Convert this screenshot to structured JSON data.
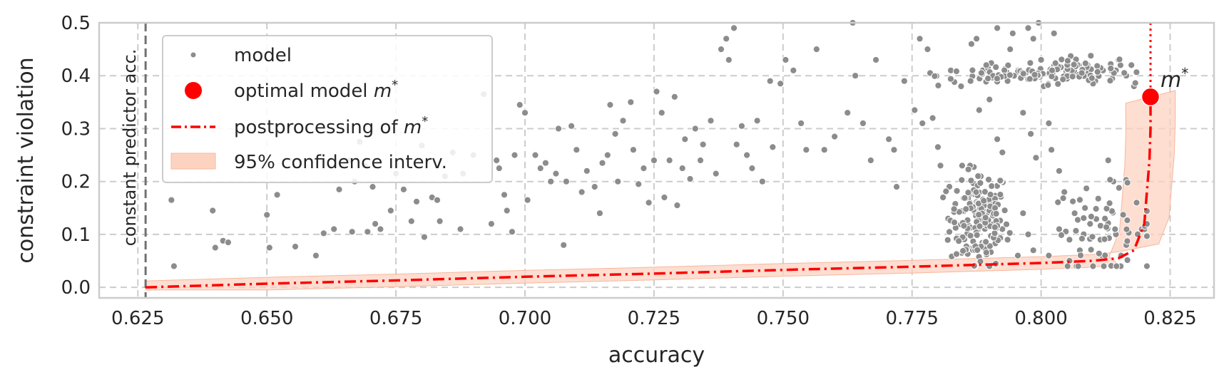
{
  "chart_data": {
    "type": "scatter",
    "xlabel": "accuracy",
    "ylabel": "constraint violation",
    "xlim": [
      0.6175,
      0.8335
    ],
    "ylim": [
      -0.02,
      0.5
    ],
    "xticks": [
      "0.625",
      "0.650",
      "0.675",
      "0.700",
      "0.725",
      "0.750",
      "0.775",
      "0.800",
      "0.825"
    ],
    "yticks": [
      "0.0",
      "0.1",
      "0.2",
      "0.3",
      "0.4",
      "0.5"
    ],
    "grid": true,
    "legend_position": "top-left",
    "legend": {
      "model": "model",
      "optimal_prefix": "optimal model ",
      "postprocessing_prefix": "postprocessing of ",
      "ci": "95% confidence interv.",
      "m_star_symbol": "m",
      "m_star_sup": "*"
    },
    "baseline": {
      "x": 0.6265,
      "label": "constant predictor acc."
    },
    "optimal_model": {
      "x": 0.8212,
      "y": 0.36,
      "label_symbol": "m",
      "label_sup": "*"
    },
    "postprocessing_curve": [
      [
        0.6265,
        0.0
      ],
      [
        0.65,
        0.007
      ],
      [
        0.675,
        0.013
      ],
      [
        0.7,
        0.02
      ],
      [
        0.725,
        0.026
      ],
      [
        0.75,
        0.033
      ],
      [
        0.775,
        0.039
      ],
      [
        0.8,
        0.046
      ],
      [
        0.81,
        0.05
      ],
      [
        0.815,
        0.055
      ],
      [
        0.818,
        0.07
      ],
      [
        0.82,
        0.12
      ],
      [
        0.8205,
        0.18
      ],
      [
        0.821,
        0.24
      ],
      [
        0.8212,
        0.3
      ],
      [
        0.8212,
        0.36
      ]
    ],
    "ci_halfwidth": 0.012,
    "colors": {
      "model": "#8c8c8c",
      "optimal": "#ff0000",
      "curve": "#ff0000",
      "ci_fill": "#fcd3c1",
      "baseline": "#707070"
    },
    "model_points_manual": [
      [
        0.6315,
        0.165
      ],
      [
        0.632,
        0.04
      ],
      [
        0.6395,
        0.145
      ],
      [
        0.64,
        0.075
      ],
      [
        0.6415,
        0.088
      ],
      [
        0.6425,
        0.085
      ],
      [
        0.65,
        0.137
      ],
      [
        0.6505,
        0.075
      ],
      [
        0.652,
        0.175
      ],
      [
        0.6555,
        0.077
      ],
      [
        0.6595,
        0.06
      ],
      [
        0.661,
        0.102
      ],
      [
        0.663,
        0.11
      ],
      [
        0.664,
        0.185
      ],
      [
        0.666,
        0.24
      ],
      [
        0.6665,
        0.105
      ],
      [
        0.667,
        0.2
      ],
      [
        0.668,
        0.275
      ],
      [
        0.669,
        0.23
      ],
      [
        0.6695,
        0.105
      ],
      [
        0.6705,
        0.19
      ],
      [
        0.671,
        0.12
      ],
      [
        0.672,
        0.11
      ],
      [
        0.674,
        0.145
      ],
      [
        0.675,
        0.215
      ],
      [
        0.6765,
        0.185
      ],
      [
        0.678,
        0.125
      ],
      [
        0.679,
        0.162
      ],
      [
        0.68,
        0.268
      ],
      [
        0.6805,
        0.095
      ],
      [
        0.682,
        0.17
      ],
      [
        0.683,
        0.165
      ],
      [
        0.6835,
        0.125
      ],
      [
        0.6845,
        0.21
      ],
      [
        0.686,
        0.255
      ],
      [
        0.6875,
        0.11
      ],
      [
        0.688,
        0.215
      ],
      [
        0.69,
        0.25
      ],
      [
        0.692,
        0.365
      ],
      [
        0.6935,
        0.12
      ],
      [
        0.6945,
        0.24
      ],
      [
        0.695,
        0.225
      ],
      [
        0.696,
        0.175
      ],
      [
        0.6965,
        0.145
      ],
      [
        0.6975,
        0.105
      ],
      [
        0.698,
        0.25
      ],
      [
        0.699,
        0.345
      ],
      [
        0.7,
        0.33
      ],
      [
        0.7005,
        0.165
      ],
      [
        0.702,
        0.25
      ],
      [
        0.703,
        0.225
      ],
      [
        0.704,
        0.235
      ],
      [
        0.705,
        0.2
      ],
      [
        0.706,
        0.215
      ],
      [
        0.7065,
        0.3
      ],
      [
        0.7075,
        0.08
      ],
      [
        0.708,
        0.2
      ],
      [
        0.709,
        0.305
      ],
      [
        0.71,
        0.26
      ],
      [
        0.711,
        0.18
      ],
      [
        0.712,
        0.22
      ],
      [
        0.7135,
        0.19
      ],
      [
        0.7145,
        0.14
      ],
      [
        0.715,
        0.235
      ],
      [
        0.716,
        0.25
      ],
      [
        0.7165,
        0.345
      ],
      [
        0.7175,
        0.29
      ],
      [
        0.718,
        0.2
      ],
      [
        0.719,
        0.315
      ],
      [
        0.7205,
        0.35
      ],
      [
        0.721,
        0.26
      ],
      [
        0.722,
        0.195
      ],
      [
        0.723,
        0.225
      ],
      [
        0.724,
        0.16
      ],
      [
        0.725,
        0.24
      ],
      [
        0.7255,
        0.37
      ],
      [
        0.7265,
        0.33
      ],
      [
        0.727,
        0.17
      ],
      [
        0.728,
        0.24
      ],
      [
        0.729,
        0.36
      ],
      [
        0.7295,
        0.155
      ],
      [
        0.7305,
        0.225
      ],
      [
        0.731,
        0.28
      ],
      [
        0.732,
        0.205
      ],
      [
        0.733,
        0.3
      ],
      [
        0.734,
        0.24
      ],
      [
        0.7345,
        0.27
      ],
      [
        0.736,
        0.315
      ],
      [
        0.737,
        0.215
      ],
      [
        0.738,
        0.45
      ],
      [
        0.739,
        0.47
      ],
      [
        0.7395,
        0.43
      ],
      [
        0.7405,
        0.49
      ],
      [
        0.741,
        0.27
      ],
      [
        0.742,
        0.305
      ],
      [
        0.743,
        0.25
      ],
      [
        0.744,
        0.225
      ],
      [
        0.745,
        0.315
      ],
      [
        0.746,
        0.2
      ],
      [
        0.7475,
        0.39
      ],
      [
        0.748,
        0.265
      ],
      [
        0.7495,
        0.385
      ],
      [
        0.7505,
        0.43
      ],
      [
        0.752,
        0.41
      ],
      [
        0.7535,
        0.31
      ],
      [
        0.7545,
        0.26
      ],
      [
        0.7565,
        0.45
      ],
      [
        0.758,
        0.26
      ],
      [
        0.76,
        0.285
      ],
      [
        0.7625,
        0.33
      ],
      [
        0.764,
        0.4
      ],
      [
        0.7655,
        0.31
      ],
      [
        0.767,
        0.24
      ],
      [
        0.768,
        0.43
      ],
      [
        0.7705,
        0.28
      ],
      [
        0.7715,
        0.26
      ],
      [
        0.772,
        0.19
      ],
      [
        0.7735,
        0.39
      ],
      [
        0.7755,
        0.335
      ],
      [
        0.777,
        0.31
      ],
      [
        0.778,
        0.45
      ],
      [
        0.7785,
        0.405
      ],
      [
        0.779,
        0.32
      ],
      [
        0.78,
        0.265
      ],
      [
        0.7805,
        0.23
      ],
      [
        0.781,
        0.17
      ],
      [
        0.782,
        0.13
      ],
      [
        0.7825,
        0.41
      ],
      [
        0.7845,
        0.38
      ],
      [
        0.7865,
        0.46
      ],
      [
        0.788,
        0.335
      ],
      [
        0.7895,
        0.41
      ],
      [
        0.79,
        0.355
      ],
      [
        0.7915,
        0.28
      ],
      [
        0.7925,
        0.255
      ],
      [
        0.7935,
        0.39
      ],
      [
        0.794,
        0.45
      ],
      [
        0.7955,
        0.41
      ],
      [
        0.7965,
        0.33
      ],
      [
        0.798,
        0.29
      ],
      [
        0.799,
        0.245
      ],
      [
        0.8,
        0.43
      ],
      [
        0.8005,
        0.38
      ],
      [
        0.8015,
        0.31
      ],
      [
        0.802,
        0.26
      ],
      [
        0.8035,
        0.22
      ],
      [
        0.8045,
        0.18
      ],
      [
        0.8065,
        0.14
      ],
      [
        0.809,
        0.42
      ],
      [
        0.8105,
        0.39
      ],
      [
        0.812,
        0.41
      ],
      [
        0.813,
        0.24
      ],
      [
        0.814,
        0.2
      ],
      [
        0.815,
        0.43
      ],
      [
        0.8165,
        0.4
      ],
      [
        0.818,
        0.38
      ],
      [
        0.8185,
        0.16
      ],
      [
        0.8195,
        0.11
      ],
      [
        0.8135,
        0.39
      ],
      [
        0.8145,
        0.41
      ],
      [
        0.8175,
        0.42
      ],
      [
        0.8025,
        0.48
      ],
      [
        0.7995,
        0.5
      ],
      [
        0.7985,
        0.47
      ],
      [
        0.7975,
        0.49
      ],
      [
        0.7945,
        0.48
      ],
      [
        0.7915,
        0.49
      ],
      [
        0.7875,
        0.47
      ],
      [
        0.7765,
        0.47
      ],
      [
        0.7635,
        0.5
      ],
      [
        0.7925,
        0.11
      ],
      [
        0.7965,
        0.14
      ],
      [
        0.7935,
        0.09
      ],
      [
        0.7985,
        0.07
      ],
      [
        0.8035,
        0.11
      ],
      [
        0.8055,
        0.09
      ],
      [
        0.8095,
        0.12
      ],
      [
        0.8115,
        0.09
      ],
      [
        0.8125,
        0.13
      ],
      [
        0.8145,
        0.1
      ],
      [
        0.8155,
        0.06
      ],
      [
        0.8165,
        0.08
      ],
      [
        0.8085,
        0.15
      ],
      [
        0.8075,
        0.07
      ],
      [
        0.8055,
        0.05
      ],
      [
        0.8015,
        0.06
      ],
      [
        0.7975,
        0.1
      ],
      [
        0.7955,
        0.06
      ]
    ],
    "cluster_a": {
      "cx": 0.788,
      "cy": 0.13,
      "sx": 0.0028,
      "sy": 0.048,
      "n": 170,
      "ymin": 0.04,
      "ymax": 0.23
    },
    "cluster_b": {
      "cx": 0.806,
      "cy": 0.41,
      "sx": 0.0045,
      "sy": 0.012,
      "n": 90,
      "ymin": 0.37,
      "ymax": 0.46
    },
    "cluster_c": {
      "cx": 0.812,
      "cy": 0.11,
      "sx": 0.005,
      "sy": 0.04,
      "n": 60,
      "ymin": 0.04,
      "ymax": 0.22
    },
    "cluster_d": {
      "cx": 0.792,
      "cy": 0.4,
      "sx": 0.006,
      "sy": 0.01,
      "n": 50,
      "ymin": 0.37,
      "ymax": 0.42
    }
  }
}
